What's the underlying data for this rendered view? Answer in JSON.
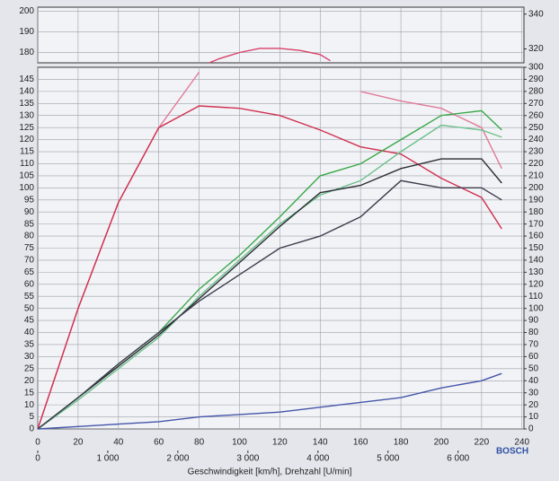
{
  "chart_data": [
    {
      "type": "line",
      "xlim": [
        0,
        241
      ],
      "ylim": [
        175,
        202
      ],
      "yticks": [
        180,
        190,
        200
      ],
      "y2lim": [
        312,
        344
      ],
      "y2ticks": [
        320,
        340
      ],
      "grid": true,
      "x": [
        85,
        90,
        100,
        110,
        120,
        130,
        140,
        145
      ],
      "series": [
        {
          "color": "#d8406a",
          "values": [
            175,
            177,
            180,
            182,
            182,
            181,
            179,
            176
          ]
        }
      ]
    },
    {
      "type": "line",
      "xlabel": "Geschwindigkeit [km/h], Drehzahl [U/min]",
      "xlim": [
        0,
        241
      ],
      "xticks": [
        0,
        20,
        40,
        60,
        80,
        100,
        120,
        140,
        160,
        180,
        200,
        220,
        240
      ],
      "x2lim": [
        0,
        6940
      ],
      "x2ticks": [
        0,
        {
          "value": 1000,
          "label": "1 000"
        },
        {
          "value": 2000,
          "label": "2 000"
        },
        {
          "value": 3000,
          "label": "3 000"
        },
        {
          "value": 4000,
          "label": "4 000"
        },
        {
          "value": 5000,
          "label": "5 000"
        },
        {
          "value": 6000,
          "label": "6 000"
        }
      ],
      "ylim": [
        0,
        150
      ],
      "yticks": [
        0,
        5,
        10,
        15,
        20,
        25,
        30,
        35,
        40,
        45,
        50,
        55,
        60,
        65,
        70,
        75,
        80,
        85,
        90,
        95,
        100,
        105,
        110,
        115,
        120,
        125,
        130,
        135,
        140,
        145
      ],
      "y2lim": [
        0,
        300
      ],
      "y2ticks": [
        0,
        10,
        20,
        30,
        40,
        50,
        60,
        70,
        80,
        90,
        100,
        110,
        120,
        130,
        140,
        150,
        160,
        170,
        180,
        190,
        200,
        210,
        220,
        230,
        240,
        250,
        260,
        270,
        280,
        290,
        300
      ],
      "grid": true,
      "x": [
        0,
        20,
        40,
        60,
        80,
        100,
        120,
        140,
        160,
        180,
        200,
        220,
        230
      ],
      "series": [
        {
          "color": "#e07a98",
          "values": [
            0,
            50,
            94,
            125,
            148,
            null,
            null,
            null,
            140,
            136,
            133,
            125,
            108
          ]
        },
        {
          "color": "#d03050",
          "values": [
            0,
            50,
            94,
            125,
            134,
            133,
            130,
            124,
            117,
            114,
            104,
            96,
            83
          ]
        },
        {
          "color": "#3aa84a",
          "values": [
            0,
            13,
            27,
            40,
            58,
            72,
            88,
            105,
            110,
            120,
            130,
            132,
            124
          ]
        },
        {
          "color": "#6cc08a",
          "values": [
            0,
            12,
            25,
            38,
            55,
            70,
            85,
            97,
            103,
            115,
            126,
            124,
            121
          ]
        },
        {
          "color": "#2c2c34",
          "values": [
            0,
            13,
            26,
            39,
            54,
            69,
            84,
            98,
            101,
            108,
            112,
            112,
            102
          ]
        },
        {
          "color": "#3c3c4c",
          "values": [
            0,
            13,
            27,
            40,
            53,
            64,
            75,
            80,
            88,
            103,
            100,
            100,
            95
          ]
        },
        {
          "color": "#4455a8",
          "values": [
            0,
            1,
            2,
            3,
            5,
            6,
            7,
            9,
            11,
            13,
            17,
            20,
            23
          ]
        }
      ]
    }
  ],
  "logo_text": "BOSCH"
}
